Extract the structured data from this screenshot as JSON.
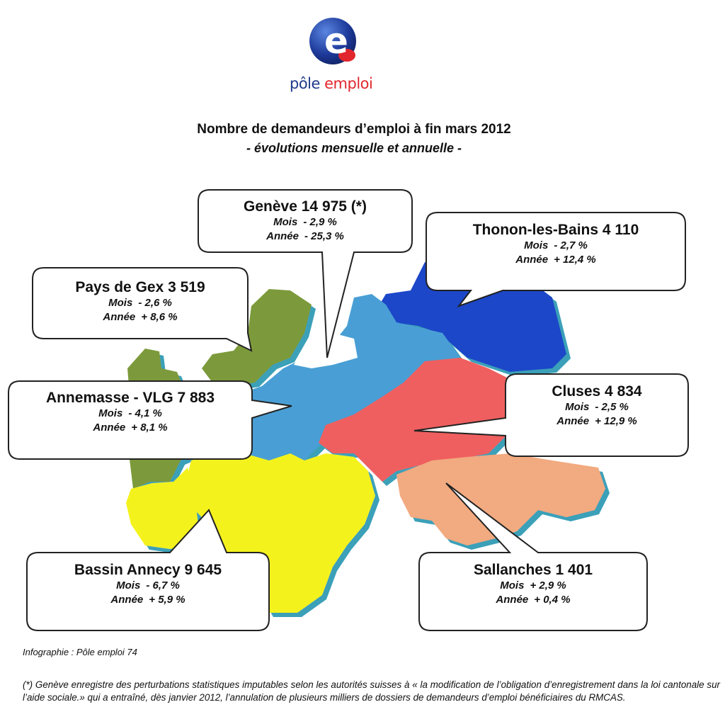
{
  "logo": {
    "word_part1": "pôle",
    "word_part2": "emploi",
    "letter": "e"
  },
  "title": "Nombre de demandeurs d’emploi à fin mars 2012",
  "subtitle": "- évolutions mensuelle et annuelle -",
  "colors": {
    "geneve_zone": "#4a9fd5",
    "thonon_zone": "#1f47c9",
    "pays_de_gex_zone": "#7c9a3a",
    "annemasse_zone": "#4a9fd5",
    "cluses_zone": "#ef5e5e",
    "sallanches_zone": "#f2aa80",
    "annecy_zone": "#f4f21a",
    "logo_blue": "#1e3a8a",
    "logo_red": "#e1262d"
  },
  "regions": {
    "geneve": {
      "name": "Genève  14 975 (*)",
      "mois_label": "Mois",
      "mois": "- 2,9 %",
      "annee_label": "Année",
      "annee": "- 25,3 %"
    },
    "thonon": {
      "name": "Thonon-les-Bains 4 110",
      "mois_label": "Mois",
      "mois": "- 2,7 %",
      "annee_label": "Année",
      "annee": "+ 12,4 %"
    },
    "gex": {
      "name": "Pays de Gex  3 519",
      "mois_label": "Mois",
      "mois": "- 2,6  %",
      "annee_label": "Année",
      "annee": "+ 8,6 %"
    },
    "annemasse": {
      "name": "Annemasse - VLG  7 883",
      "mois_label": "Mois",
      "mois": "- 4,1 %",
      "annee_label": "Année",
      "annee": "+ 8,1  %"
    },
    "cluses": {
      "name": "Cluses 4 834",
      "mois_label": "Mois",
      "mois": "- 2,5  %",
      "annee_label": "Année",
      "annee": "+ 12,9 %"
    },
    "annecy": {
      "name": "Bassin Annecy 9 645",
      "mois_label": "Mois",
      "mois": "- 6,7 %",
      "annee_label": "Année",
      "annee": "+ 5,9 %"
    },
    "sallanches": {
      "name": "Sallanches 1 401",
      "mois_label": "Mois",
      "mois": "+ 2,9  %",
      "annee_label": "Année",
      "annee": "+ 0,4 %"
    }
  },
  "credit": "Infographie : Pôle emploi 74",
  "footnote": "(*) Genève enregistre des perturbations statistiques  imputables selon les autorités suisses à « la modification de l’obligation d’enregistrement dans la loi cantonale sur l’aide sociale.» qui a entraîné, dès janvier 2012, l’annulation de plusieurs milliers de dossiers de demandeurs d’emploi bénéficiaires du RMCAS."
}
